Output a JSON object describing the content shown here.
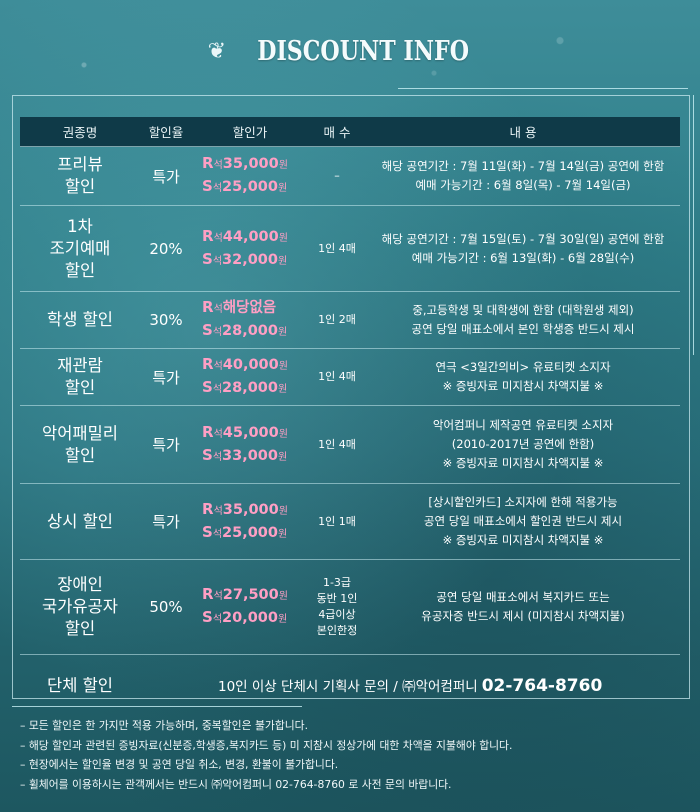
{
  "header": {
    "title": "DISCOUNT INFO"
  },
  "table": {
    "headers": [
      "권종명",
      "할인율",
      "할인가",
      "매 수",
      "내 용"
    ],
    "rows": [
      {
        "name": [
          "프리뷰",
          "할인"
        ],
        "rate": "특가",
        "prices": [
          {
            "grade": "R",
            "seat": "석",
            "amount": "35,000",
            "unit": "원"
          },
          {
            "grade": "S",
            "seat": "석",
            "amount": "25,000",
            "unit": "원"
          }
        ],
        "qty": [
          "–"
        ],
        "desc": [
          "해당 공연기간 : 7월 11일(화) - 7월 14일(금) 공연에 한함",
          "예매 가능기간 : 6월 8일(목) - 7월 14일(금)"
        ]
      },
      {
        "name": [
          "1차",
          "조기예매",
          "할인"
        ],
        "rate": "20%",
        "prices": [
          {
            "grade": "R",
            "seat": "석",
            "amount": "44,000",
            "unit": "원"
          },
          {
            "grade": "S",
            "seat": "석",
            "amount": "32,000",
            "unit": "원"
          }
        ],
        "qty": [
          "1인 4매"
        ],
        "desc": [
          "해당 공연기간 : 7월 15일(토) - 7월 30일(일) 공연에 한함",
          "예매 가능기간 : 6월 13일(화) - 6월 28일(수)"
        ]
      },
      {
        "name": [
          "학생 할인"
        ],
        "rate": "30%",
        "prices": [
          {
            "grade": "R",
            "seat": "석",
            "amount": "해당없음",
            "unit": ""
          },
          {
            "grade": "S",
            "seat": "석",
            "amount": "28,000",
            "unit": "원"
          }
        ],
        "qty": [
          "1인 2매"
        ],
        "desc": [
          "중,고등학생 및 대학생에 한함 (대학원생 제외)",
          "공연 당일 매표소에서 본인 학생증 반드시 제시"
        ]
      },
      {
        "name": [
          "재관람",
          "할인"
        ],
        "rate": "특가",
        "prices": [
          {
            "grade": "R",
            "seat": "석",
            "amount": "40,000",
            "unit": "원"
          },
          {
            "grade": "S",
            "seat": "석",
            "amount": "28,000",
            "unit": "원"
          }
        ],
        "qty": [
          "1인 4매"
        ],
        "desc": [
          "연극 <3일간의비> 유료티켓 소지자",
          "※ 증빙자료 미지참시 차액지불 ※"
        ]
      },
      {
        "name": [
          "악어패밀리",
          "할인"
        ],
        "rate": "특가",
        "prices": [
          {
            "grade": "R",
            "seat": "석",
            "amount": "45,000",
            "unit": "원"
          },
          {
            "grade": "S",
            "seat": "석",
            "amount": "33,000",
            "unit": "원"
          }
        ],
        "qty": [
          "1인 4매"
        ],
        "desc": [
          "악어컴퍼니 제작공연 유료티켓 소지자",
          "(2010-2017년 공연에 한함)",
          "※ 증빙자료 미지참시 차액지불 ※"
        ]
      },
      {
        "name": [
          "상시 할인"
        ],
        "rate": "특가",
        "prices": [
          {
            "grade": "R",
            "seat": "석",
            "amount": "35,000",
            "unit": "원"
          },
          {
            "grade": "S",
            "seat": "석",
            "amount": "25,000",
            "unit": "원"
          }
        ],
        "qty": [
          "1인 1매"
        ],
        "desc": [
          "[상시할인카드] 소지자에 한해 적용가능",
          "공연 당일 매표소에서 할인권 반드시 제시",
          "※ 증빙자료 미지참시 차액지불 ※"
        ]
      },
      {
        "name": [
          "장애인",
          "국가유공자",
          "할인"
        ],
        "rate": "50%",
        "prices": [
          {
            "grade": "R",
            "seat": "석",
            "amount": "27,500",
            "unit": "원"
          },
          {
            "grade": "S",
            "seat": "석",
            "amount": "20,000",
            "unit": "원"
          }
        ],
        "qty": [
          "1-3급",
          "동반 1인",
          "4급이상",
          "본인한정"
        ],
        "desc": [
          "공연 당일 매표소에서 복지카드 또는",
          "유공자증 반드시 제시 (미지참시 차액지불)"
        ]
      }
    ],
    "group": {
      "name": "단체 할인",
      "info": "10인 이상 단체시 기획사 문의 / ㈜악어컴퍼니",
      "phone": "02-764-8760"
    }
  },
  "notes": [
    "– 모든 할인은 한 가지만 적용 가능하며, 중복할인은 불가합니다.",
    "– 해당 할인과 관련된 증빙자료(신분증,학생증,복지카드 등) 미 지참시 정상가에 대한 차액을 지불해야 합니다.",
    "– 현장에서는 할인율 변경 및 공연 당일 취소, 변경, 환불이 불가합니다.",
    "– 휠체어를 이용하시는 관객께서는 반드시 ㈜악어컴퍼니 02-764-8760 로 사전 문의 바랍니다."
  ]
}
